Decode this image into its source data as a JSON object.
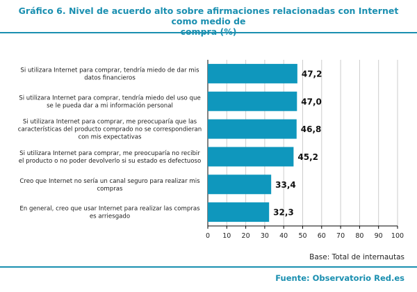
{
  "header": {
    "title_line1": "Gráfico 6. Nivel de acuerdo alto sobre afirmaciones relacionadas con Internet como medio de",
    "title_line2": "compra (%)"
  },
  "footer": {
    "base_note": "Base: Total de internautas",
    "source": "Fuente: Observatorio Red.es"
  },
  "colors": {
    "bar": "#0f97bd",
    "accent": "#1a8fb0",
    "grid": "#cccccc"
  },
  "chart_data": {
    "type": "bar",
    "orientation": "horizontal",
    "title": "Gráfico 6. Nivel de acuerdo alto sobre afirmaciones relacionadas con Internet como medio de compra (%)",
    "categories": [
      [
        "Si utilizara Internet para comprar, tendría miedo de dar mis",
        "datos financieros"
      ],
      [
        "Si utilizara Internet para comprar, tendría miedo del uso que",
        "se le pueda dar a mi información personal"
      ],
      [
        "Si utilizara Internet para comprar, me preocuparía que las",
        "características del producto comprado no se correspondieran",
        "con mis expectativas"
      ],
      [
        "Si utilizara Internet para comprar, me preocuparía no recibir",
        "el producto o no poder devolverlo si su estado es defectuoso"
      ],
      [
        "Creo que Internet no sería un canal seguro para realizar mis",
        "compras"
      ],
      [
        "En general, creo que usar Internet para realizar las compras",
        "es arriesgado"
      ]
    ],
    "values": [
      47.2,
      47.0,
      46.8,
      45.2,
      33.4,
      32.3
    ],
    "value_labels": [
      "47,2",
      "47,0",
      "46,8",
      "45,2",
      "33,4",
      "32,3"
    ],
    "xlim": [
      0,
      100
    ],
    "xticks": [
      0,
      10,
      20,
      30,
      40,
      50,
      60,
      70,
      80,
      90,
      100
    ],
    "grid": "vertical",
    "legend": "none"
  }
}
